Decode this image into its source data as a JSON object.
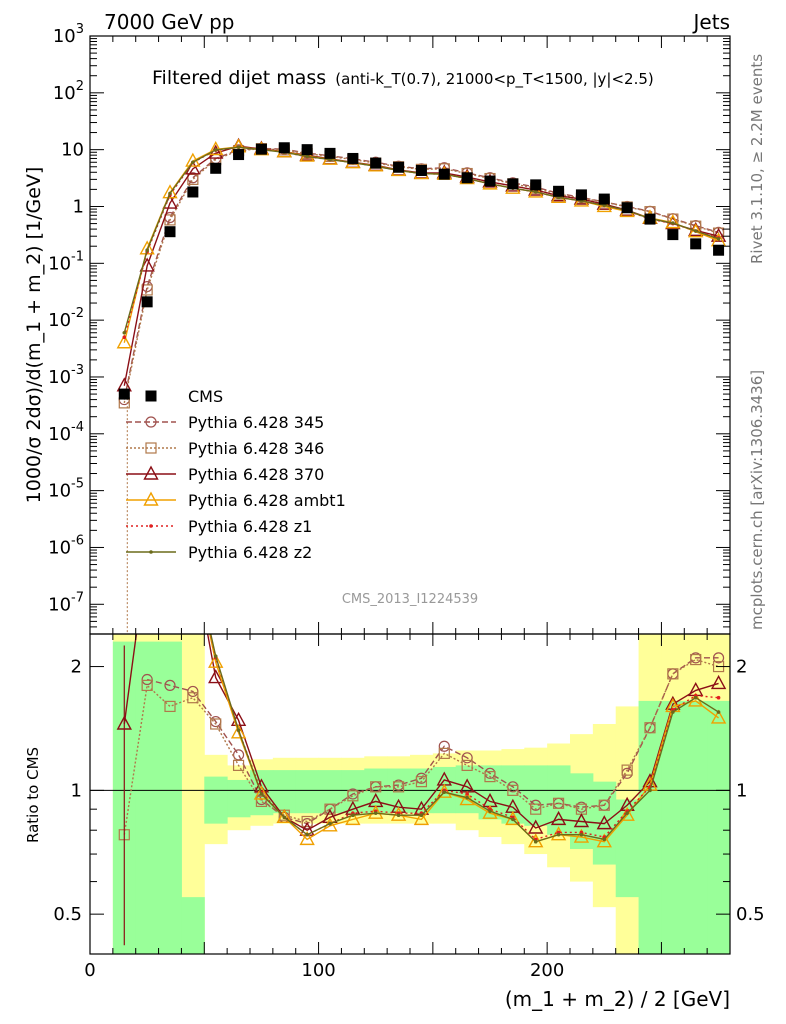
{
  "header": {
    "left": "7000 GeV pp",
    "right": "Jets"
  },
  "side_labels": {
    "rivet": "Rivet 3.1.10, ≥ 2.2M events",
    "mcplots": "mcplots.cern.ch [arXiv:1306.3436]"
  },
  "watermark": "CMS_2013_I1224539",
  "title": {
    "main": "Filtered dijet mass",
    "sub": "(anti-k_T(0.7), 21000<p_T<1500, |y|<2.5)"
  },
  "chart_data": [
    {
      "type": "line",
      "panel": "main",
      "ylabel": "1000/σ 2dσ)/d(m_1 + m_2) [1/GeV]",
      "yscale": "log",
      "ylim": [
        3e-08,
        1000
      ],
      "xlim": [
        0,
        280
      ],
      "y_tick_labels": [
        "10^{-7}",
        "10^{-6}",
        "10^{-5}",
        "10^{-4}",
        "10^{-3}",
        "10^{-2}",
        "10^{-1}",
        "1",
        "10",
        "10^{2}",
        "10^{3}"
      ],
      "x": [
        15,
        25,
        35,
        45,
        55,
        65,
        75,
        85,
        95,
        105,
        115,
        125,
        135,
        145,
        155,
        165,
        175,
        185,
        195,
        205,
        215,
        225,
        235,
        245,
        255,
        265,
        275
      ],
      "data": {
        "name": "CMS",
        "color": "#000000",
        "values": [
          0.0005,
          0.021,
          0.36,
          1.8,
          4.7,
          8.2,
          10.2,
          10.8,
          10.0,
          8.6,
          7.0,
          5.8,
          4.9,
          4.3,
          3.7,
          3.2,
          2.8,
          2.5,
          2.4,
          1.85,
          1.6,
          1.35,
          0.95,
          0.6,
          0.32,
          0.22,
          0.17
        ]
      },
      "series": [
        {
          "name": "Pythia 6.428 345",
          "color": "#a0524f",
          "dash": "6,3",
          "marker": "circle",
          "values": [
            0.0004,
            0.039,
            0.64,
            3.2,
            7.0,
            9.9,
            10.5,
            10.2,
            8.7,
            7.8,
            6.9,
            6.0,
            5.1,
            4.6,
            4.8,
            3.9,
            3.2,
            2.6,
            2.2,
            1.7,
            1.45,
            1.2,
            1.0,
            0.82,
            0.61,
            0.46,
            0.35
          ]
        },
        {
          "name": "Pythia 6.428 346",
          "color": "#b0784a",
          "dash": "2,2",
          "marker": "square",
          "values": [
            0.00035,
            0.034,
            0.58,
            3.0,
            6.7,
            9.6,
            10.4,
            9.9,
            8.5,
            7.6,
            6.7,
            5.8,
            5.0,
            4.5,
            4.6,
            3.8,
            3.1,
            2.5,
            2.1,
            1.65,
            1.4,
            1.2,
            0.98,
            0.81,
            0.6,
            0.45,
            0.34
          ]
        },
        {
          "name": "Pythia 6.428 370",
          "color": "#8b0f16",
          "dash": "",
          "marker": "triangle",
          "values": [
            0.0007,
            0.09,
            1.15,
            4.6,
            8.7,
            11.5,
            10.3,
            9.2,
            8.0,
            6.9,
            6.0,
            5.3,
            4.4,
            3.9,
            3.9,
            3.3,
            2.7,
            2.3,
            1.95,
            1.55,
            1.35,
            1.1,
            0.86,
            0.62,
            0.5,
            0.38,
            0.3
          ]
        },
        {
          "name": "Pythia 6.428 ambt1",
          "color": "#f0a000",
          "dash": "",
          "marker": "triangle",
          "values": [
            0.004,
            0.18,
            1.75,
            6.3,
            10.1,
            11.2,
            10.0,
            9.2,
            7.7,
            6.8,
            5.9,
            5.2,
            4.3,
            3.8,
            3.7,
            3.1,
            2.5,
            2.1,
            1.8,
            1.45,
            1.25,
            1.0,
            0.82,
            0.63,
            0.52,
            0.36,
            0.25
          ]
        },
        {
          "name": "Pythia 6.428 z1",
          "color": "#e02020",
          "dash": "2,3",
          "marker": "dot",
          "values": [
            0.005,
            0.16,
            1.6,
            5.9,
            9.8,
            11.0,
            10.1,
            9.0,
            7.5,
            6.7,
            5.9,
            5.1,
            4.3,
            3.8,
            3.7,
            3.1,
            2.5,
            2.1,
            1.8,
            1.45,
            1.25,
            1.05,
            0.84,
            0.6,
            0.5,
            0.37,
            0.28
          ]
        },
        {
          "name": "Pythia 6.428 z2",
          "color": "#6b6b1a",
          "dash": "",
          "marker": "dot",
          "values": [
            0.006,
            0.17,
            1.7,
            6.0,
            9.9,
            11.0,
            10.0,
            9.0,
            7.6,
            6.7,
            5.9,
            5.1,
            4.3,
            3.8,
            3.7,
            3.1,
            2.5,
            2.1,
            1.8,
            1.45,
            1.25,
            1.05,
            0.85,
            0.61,
            0.51,
            0.37,
            0.27
          ]
        }
      ]
    },
    {
      "type": "line",
      "panel": "ratio",
      "ylabel": "Ratio to CMS",
      "xlabel": "(m_1 + m_2) / 2 [GeV]",
      "yscale": "log",
      "ylim": [
        0.4,
        2.4
      ],
      "xlim": [
        0,
        280
      ],
      "y_tick_labels": [
        "0.5",
        "1",
        "2"
      ],
      "x_tick_labels": [
        "0",
        "100",
        "200"
      ],
      "band_edges": [
        10,
        20,
        30,
        40,
        50,
        60,
        70,
        80,
        90,
        100,
        110,
        120,
        130,
        140,
        150,
        160,
        170,
        180,
        190,
        200,
        210,
        220,
        230,
        240,
        250,
        260,
        270,
        280
      ],
      "band_green": [
        [
          0.4,
          2.3
        ],
        [
          0.4,
          2.3
        ],
        [
          0.4,
          2.3
        ],
        [
          0.4,
          0.55
        ],
        [
          0.83,
          1.08
        ],
        [
          0.86,
          1.06
        ],
        [
          0.87,
          1.12
        ],
        [
          0.88,
          1.12
        ],
        [
          0.88,
          1.12
        ],
        [
          0.88,
          1.12
        ],
        [
          0.88,
          1.12
        ],
        [
          0.88,
          1.13
        ],
        [
          0.88,
          1.13
        ],
        [
          0.88,
          1.13
        ],
        [
          0.88,
          1.14
        ],
        [
          0.88,
          1.15
        ],
        [
          0.85,
          1.15
        ],
        [
          0.83,
          1.15
        ],
        [
          0.82,
          1.15
        ],
        [
          0.78,
          1.15
        ],
        [
          0.72,
          1.1
        ],
        [
          0.66,
          1.05
        ],
        [
          0.55,
          0.95
        ],
        [
          0.4,
          1.65
        ],
        [
          0.4,
          1.65
        ],
        [
          0.4,
          1.65
        ],
        [
          0.4,
          1.65
        ]
      ],
      "band_yellow": [
        [
          0.4,
          2.4
        ],
        [
          0.4,
          2.4
        ],
        [
          0.4,
          2.4
        ],
        [
          0.4,
          2.4
        ],
        [
          0.74,
          1.22
        ],
        [
          0.8,
          1.15
        ],
        [
          0.82,
          1.19
        ],
        [
          0.83,
          1.2
        ],
        [
          0.83,
          1.2
        ],
        [
          0.83,
          1.2
        ],
        [
          0.83,
          1.2
        ],
        [
          0.83,
          1.21
        ],
        [
          0.83,
          1.21
        ],
        [
          0.83,
          1.22
        ],
        [
          0.83,
          1.23
        ],
        [
          0.8,
          1.25
        ],
        [
          0.77,
          1.25
        ],
        [
          0.74,
          1.26
        ],
        [
          0.7,
          1.27
        ],
        [
          0.65,
          1.3
        ],
        [
          0.6,
          1.37
        ],
        [
          0.52,
          1.45
        ],
        [
          0.4,
          1.6
        ],
        [
          0.4,
          2.4
        ],
        [
          0.4,
          2.4
        ],
        [
          0.4,
          2.4
        ],
        [
          0.4,
          2.4
        ]
      ],
      "series": [
        {
          "name": "Pythia 6.428 345",
          "values": [
            null,
            1.86,
            1.8,
            1.74,
            1.47,
            1.22,
            0.95,
            0.86,
            0.83,
            0.9,
            0.98,
            1.02,
            1.03,
            1.07,
            1.28,
            1.2,
            1.1,
            1.02,
            0.92,
            0.93,
            0.91,
            0.92,
            1.1,
            1.42,
            1.92,
            2.1,
            2.1
          ]
        },
        {
          "name": "Pythia 6.428 346",
          "values": [
            0.78,
            1.8,
            1.6,
            1.68,
            1.45,
            1.15,
            0.94,
            0.87,
            0.84,
            0.9,
            0.97,
            1.02,
            1.02,
            1.05,
            1.23,
            1.15,
            1.08,
            1.0,
            0.9,
            0.93,
            0.9,
            0.92,
            1.12,
            1.42,
            1.92,
            2.08,
            2.0
          ]
        },
        {
          "name": "Pythia 6.428 370",
          "values": [
            1.45,
            null,
            null,
            null,
            1.88,
            1.48,
            1.02,
            0.86,
            0.8,
            0.86,
            0.9,
            0.94,
            0.91,
            0.9,
            1.06,
            1.02,
            0.94,
            0.91,
            0.81,
            0.85,
            0.84,
            0.83,
            0.92,
            1.05,
            1.62,
            1.75,
            1.82
          ]
        },
        {
          "name": "Pythia 6.428 ambt1",
          "values": [
            null,
            null,
            null,
            null,
            2.05,
            1.38,
            0.98,
            0.86,
            0.76,
            0.82,
            0.85,
            0.88,
            0.87,
            0.85,
            0.99,
            0.95,
            0.88,
            0.85,
            0.75,
            0.78,
            0.77,
            0.75,
            0.87,
            1.03,
            1.6,
            1.65,
            1.5
          ]
        },
        {
          "name": "Pythia 6.428 z1",
          "values": [
            null,
            null,
            null,
            null,
            2.1,
            1.4,
            0.99,
            0.86,
            0.78,
            0.83,
            0.88,
            0.89,
            0.88,
            0.88,
            1.0,
            0.98,
            0.9,
            0.86,
            0.76,
            0.79,
            0.79,
            0.77,
            0.89,
            1.02,
            1.57,
            1.7,
            1.68
          ]
        },
        {
          "name": "Pythia 6.428 z2",
          "values": [
            null,
            null,
            null,
            null,
            2.12,
            1.4,
            0.98,
            0.86,
            0.78,
            0.83,
            0.87,
            0.88,
            0.87,
            0.87,
            0.99,
            0.96,
            0.89,
            0.85,
            0.75,
            0.78,
            0.78,
            0.76,
            0.88,
            1.0,
            1.55,
            1.68,
            1.55
          ]
        }
      ]
    }
  ]
}
